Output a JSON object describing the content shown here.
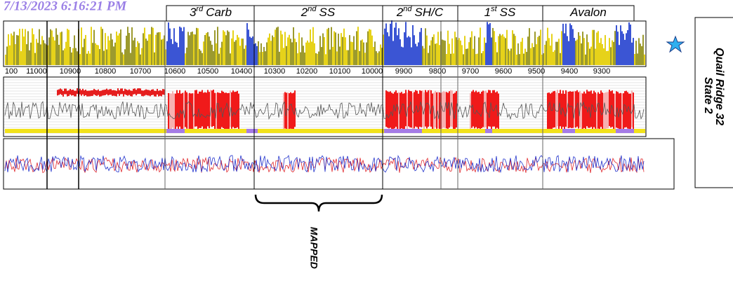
{
  "timestamp": "7/13/2023 6:16:21 PM",
  "zones": [
    {
      "num": "3",
      "sup": "rd",
      "name": "Carb"
    },
    {
      "num": "2",
      "sup": "nd",
      "name": "SS"
    },
    {
      "num": "2",
      "sup": "nd",
      "name": "SH/C"
    },
    {
      "num": "1",
      "sup": "st",
      "name": "SS"
    },
    {
      "name": "Avalon"
    }
  ],
  "depths": [
    "100",
    "11000",
    "10900",
    "10800",
    "10700",
    "10600",
    "10500",
    "10400",
    "10300",
    "10200",
    "10100",
    "10000",
    "9900",
    "9800",
    "9700",
    "9600",
    "9500",
    "9400",
    "9300"
  ],
  "annotation": "MAPPED",
  "well": {
    "line1": "Quail Ridge 32",
    "line2": "State 2"
  }
}
